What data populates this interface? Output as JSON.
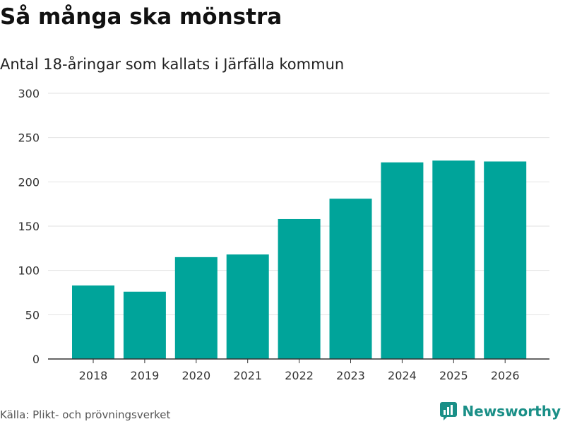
{
  "header": {
    "title": "Så många ska mönstra",
    "subtitle": "Antal 18-åringar som kallats i Järfälla kommun"
  },
  "chart_data": {
    "type": "bar",
    "title": "Så många ska mönstra",
    "subtitle": "Antal 18-åringar som kallats i Järfälla kommun",
    "xlabel": "",
    "ylabel": "",
    "categories": [
      "2018",
      "2019",
      "2020",
      "2021",
      "2022",
      "2023",
      "2024",
      "2025",
      "2026"
    ],
    "values": [
      83,
      76,
      115,
      118,
      158,
      181,
      222,
      224,
      223
    ],
    "ylim": [
      0,
      300
    ],
    "yticks": [
      0,
      50,
      100,
      150,
      200,
      250,
      300
    ],
    "grid": true,
    "legend": "none"
  },
  "footer": {
    "source": "Källa: Plikt- och prövningsverket",
    "brand": "Newsworthy"
  },
  "colors": {
    "bar": "#00a49a",
    "brand": "#1a8f87",
    "grid": "#e2e2e2",
    "axis": "#333333"
  }
}
